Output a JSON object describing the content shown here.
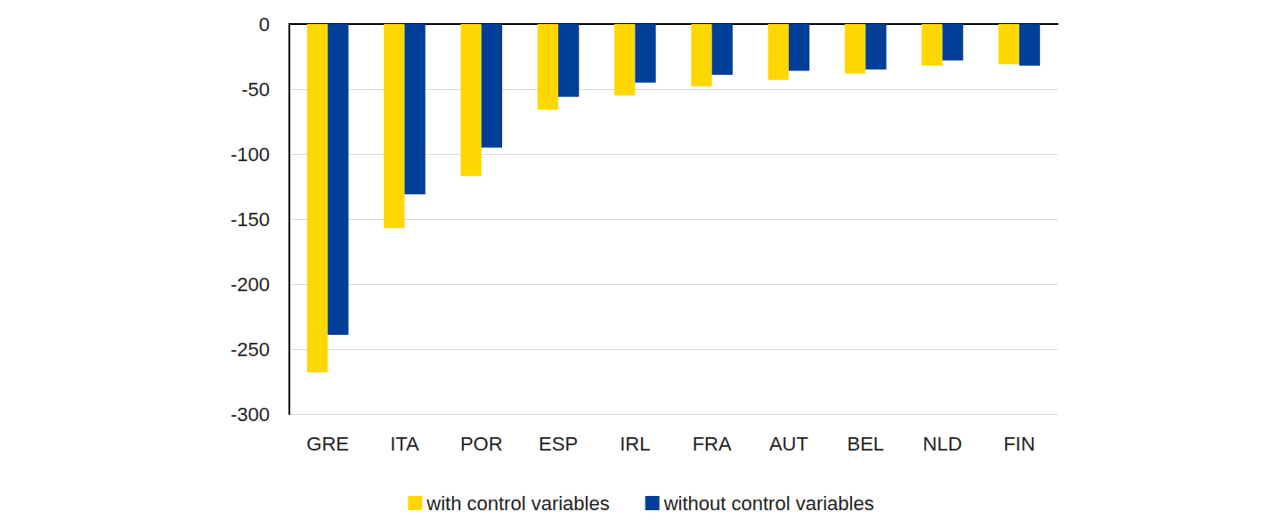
{
  "chart_data": {
    "type": "bar",
    "categories": [
      "GRE",
      "ITA",
      "POR",
      "ESP",
      "IRL",
      "FRA",
      "AUT",
      "BEL",
      "NLD",
      "FIN"
    ],
    "series": [
      {
        "name": "with control variables",
        "color": "#ffd700",
        "values": [
          -268,
          -157,
          -117,
          -66,
          -55,
          -48,
          -43,
          -38,
          -32,
          -31
        ]
      },
      {
        "name": "without control variables",
        "color": "#003f98",
        "values": [
          -239,
          -131,
          -95,
          -56,
          -45,
          -39,
          -36,
          -35,
          -28,
          -32
        ]
      }
    ],
    "ylim": [
      -300,
      0
    ],
    "yticks": [
      -300,
      -250,
      -200,
      -150,
      -100,
      -50,
      0
    ],
    "grid": true,
    "legend": "bottom"
  }
}
